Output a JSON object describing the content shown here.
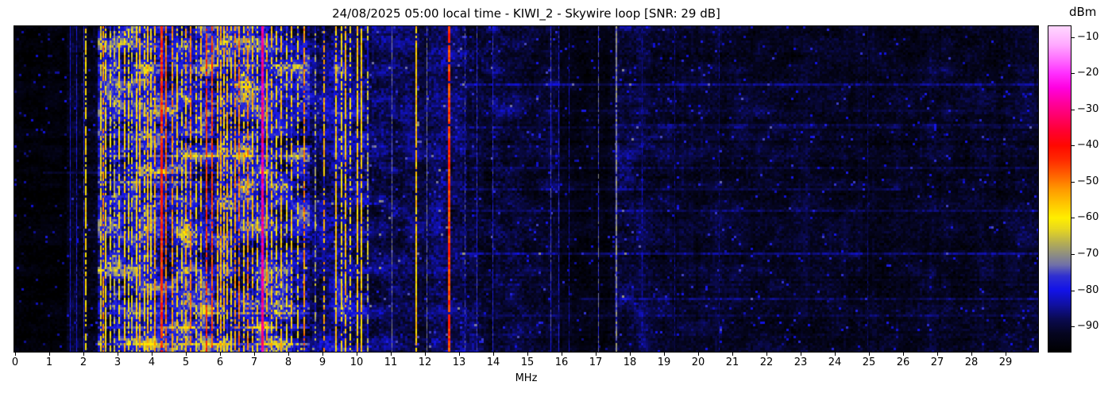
{
  "title": "24/08/2025 05:00 local time - KIWI_2 - Skywire loop [SNR: 29 dB]",
  "x_axis": {
    "label": "MHz",
    "tick_labels": [
      "0",
      "1",
      "2",
      "3",
      "4",
      "5",
      "6",
      "7",
      "8",
      "9",
      "10",
      "11",
      "12",
      "13",
      "14",
      "15",
      "16",
      "17",
      "18",
      "19",
      "20",
      "21",
      "22",
      "23",
      "24",
      "25",
      "26",
      "27",
      "28",
      "29"
    ]
  },
  "colorbar": {
    "label": "dBm",
    "ticks": [
      {
        "v": -10,
        "label": "−10"
      },
      {
        "v": -20,
        "label": "−20"
      },
      {
        "v": -30,
        "label": "−30"
      },
      {
        "v": -40,
        "label": "−40"
      },
      {
        "v": -50,
        "label": "−50"
      },
      {
        "v": -60,
        "label": "−60"
      },
      {
        "v": -70,
        "label": "−70"
      },
      {
        "v": -80,
        "label": "−80"
      },
      {
        "v": -90,
        "label": "−90"
      }
    ]
  },
  "chart_data": {
    "type": "heatmap",
    "subtype": "radio-spectrogram-waterfall",
    "title": "24/08/2025 05:00 local time - KIWI_2 - Skywire loop [SNR: 29 dB]",
    "xlabel": "MHz",
    "x_range": [
      0,
      29.95
    ],
    "x_ticks": [
      0,
      1,
      2,
      3,
      4,
      5,
      6,
      7,
      8,
      9,
      10,
      11,
      12,
      13,
      14,
      15,
      16,
      17,
      18,
      19,
      20,
      21,
      22,
      23,
      24,
      25,
      26,
      27,
      28,
      29
    ],
    "y_axis": "time (vertical, no tick labels shown)",
    "value_unit": "dBm",
    "value_range": [
      -97,
      -7
    ],
    "colorbar_ticks": [
      -10,
      -20,
      -30,
      -40,
      -50,
      -60,
      -70,
      -80,
      -90
    ],
    "grid": false,
    "legend": "colorbar right",
    "colormap_stops": [
      [
        0.0,
        "#000000"
      ],
      [
        0.056,
        "#050520"
      ],
      [
        0.1,
        "#0a0a50"
      ],
      [
        0.144,
        "#1010a0"
      ],
      [
        0.189,
        "#1212e8"
      ],
      [
        0.233,
        "#3030d0"
      ],
      [
        0.267,
        "#7070a8"
      ],
      [
        0.3,
        "#8f8f80"
      ],
      [
        0.333,
        "#b3ac55"
      ],
      [
        0.378,
        "#e8d81e"
      ],
      [
        0.411,
        "#ffee00"
      ],
      [
        0.456,
        "#ffc400"
      ],
      [
        0.5,
        "#ff9800"
      ],
      [
        0.544,
        "#ff6000"
      ],
      [
        0.589,
        "#ff2a00"
      ],
      [
        0.633,
        "#ff0800"
      ],
      [
        0.678,
        "#ff0030"
      ],
      [
        0.722,
        "#ff0068"
      ],
      [
        0.767,
        "#ff00a0"
      ],
      [
        0.811,
        "#ff00e0"
      ],
      [
        0.856,
        "#ff30ff"
      ],
      [
        0.9,
        "#ff70ff"
      ],
      [
        0.944,
        "#ffaaff"
      ],
      [
        1.0,
        "#ffd8ff"
      ]
    ],
    "noise_seed": 73,
    "bands_format": "[f_from_MHz, f_to_MHz, base_dBm, jitter_dB, blotch_dB]",
    "bands": [
      [
        0.0,
        1.5,
        -95.5,
        1.6,
        1.5
      ],
      [
        1.5,
        2.42,
        -92.5,
        2.6,
        2.0
      ],
      [
        2.42,
        8.62,
        -81.0,
        5.5,
        12.0
      ],
      [
        8.62,
        9.3,
        -86.5,
        4.0,
        6.0
      ],
      [
        9.3,
        10.35,
        -85.0,
        4.5,
        8.0
      ],
      [
        10.35,
        11.5,
        -88.0,
        3.2,
        4.0
      ],
      [
        11.5,
        13.2,
        -88.5,
        3.2,
        4.0
      ],
      [
        13.2,
        14.8,
        -89.5,
        3.0,
        3.5
      ],
      [
        14.8,
        15.95,
        -90.5,
        2.8,
        3.0
      ],
      [
        15.95,
        17.55,
        -93.8,
        2.0,
        2.0
      ],
      [
        17.55,
        18.4,
        -89.5,
        3.0,
        3.5
      ],
      [
        18.4,
        19.3,
        -90.5,
        2.8,
        3.0
      ],
      [
        19.3,
        21.5,
        -91.5,
        2.5,
        2.5
      ],
      [
        21.5,
        29.95,
        -92.0,
        2.5,
        2.5
      ]
    ],
    "carriers_format": "[freq_MHz, peak_dBm, duty_0to1, width_px]",
    "carriers": [
      [
        1.6,
        -81,
        1.0,
        1
      ],
      [
        1.78,
        -80,
        0.9,
        1
      ],
      [
        2.0,
        -78,
        0.95,
        1
      ],
      [
        2.07,
        -59,
        0.7,
        2
      ],
      [
        2.5,
        -62,
        0.85,
        2
      ],
      [
        2.58,
        -52,
        0.6,
        2
      ],
      [
        2.66,
        -60,
        0.8,
        2
      ],
      [
        2.78,
        -63,
        0.7,
        2
      ],
      [
        2.9,
        -66,
        0.6,
        2
      ],
      [
        3.05,
        -60,
        0.75,
        2
      ],
      [
        3.2,
        -57,
        0.8,
        2
      ],
      [
        3.33,
        -61,
        0.7,
        2
      ],
      [
        3.42,
        -64,
        0.6,
        2
      ],
      [
        3.55,
        -58,
        0.8,
        2
      ],
      [
        3.65,
        -56,
        0.85,
        2
      ],
      [
        3.78,
        -60,
        0.7,
        2
      ],
      [
        3.88,
        -55,
        0.85,
        2
      ],
      [
        3.98,
        -59,
        0.75,
        2
      ],
      [
        4.1,
        -54,
        0.85,
        2
      ],
      [
        4.28,
        -44,
        0.97,
        3
      ],
      [
        4.43,
        -49,
        0.9,
        2
      ],
      [
        4.6,
        -52,
        0.85,
        2
      ],
      [
        4.75,
        -58,
        0.7,
        2
      ],
      [
        4.88,
        -61,
        0.6,
        2
      ],
      [
        5.0,
        -55,
        0.8,
        2
      ],
      [
        5.15,
        -51,
        0.85,
        2
      ],
      [
        5.3,
        -59,
        0.7,
        2
      ],
      [
        5.45,
        -57,
        0.75,
        2
      ],
      [
        5.6,
        -45,
        0.9,
        2
      ],
      [
        5.77,
        -46,
        0.9,
        2
      ],
      [
        5.92,
        -56,
        0.8,
        2
      ],
      [
        6.02,
        -55,
        0.85,
        2
      ],
      [
        6.12,
        -57,
        0.8,
        2
      ],
      [
        6.22,
        -56,
        0.8,
        2
      ],
      [
        6.32,
        -59,
        0.7,
        2
      ],
      [
        6.45,
        -53,
        0.8,
        2
      ],
      [
        6.55,
        -50,
        0.85,
        2
      ],
      [
        6.7,
        -57,
        0.7,
        2
      ],
      [
        6.82,
        -52,
        0.8,
        2
      ],
      [
        6.95,
        -56,
        0.7,
        2
      ],
      [
        7.1,
        -59,
        0.7,
        2
      ],
      [
        7.23,
        -29,
        1.0,
        3
      ],
      [
        7.38,
        -55,
        0.8,
        2
      ],
      [
        7.52,
        -57,
        0.7,
        2
      ],
      [
        7.66,
        -59,
        0.7,
        2
      ],
      [
        7.8,
        -56,
        0.75,
        2
      ],
      [
        7.95,
        -61,
        0.6,
        2
      ],
      [
        8.1,
        -57,
        0.7,
        2
      ],
      [
        8.28,
        -60,
        0.6,
        2
      ],
      [
        8.47,
        -51,
        0.7,
        2
      ],
      [
        8.78,
        -68,
        0.5,
        2
      ],
      [
        9.05,
        -54,
        0.55,
        2
      ],
      [
        9.4,
        -57,
        0.9,
        2
      ],
      [
        9.55,
        -60,
        0.75,
        2
      ],
      [
        9.68,
        -56,
        0.85,
        2
      ],
      [
        9.82,
        -62,
        0.6,
        2
      ],
      [
        10.02,
        -57,
        0.85,
        2
      ],
      [
        10.15,
        -57,
        0.9,
        2
      ],
      [
        10.32,
        -66,
        0.5,
        2
      ],
      [
        11.02,
        -73,
        0.95,
        1
      ],
      [
        11.74,
        -57,
        0.95,
        2
      ],
      [
        12.05,
        -73,
        0.9,
        1
      ],
      [
        12.7,
        -45,
        0.97,
        3
      ],
      [
        13.16,
        -76,
        0.6,
        1
      ],
      [
        13.5,
        -78,
        0.9,
        1
      ],
      [
        13.98,
        -78,
        0.85,
        1
      ],
      [
        15.68,
        -77,
        0.9,
        1
      ],
      [
        15.9,
        -79,
        0.8,
        1
      ],
      [
        16.2,
        -84,
        0.8,
        1
      ],
      [
        17.07,
        -75,
        0.9,
        1
      ],
      [
        17.6,
        -72,
        0.97,
        2
      ],
      [
        18.35,
        -84,
        0.7,
        1
      ],
      [
        19.3,
        -85,
        0.6,
        1
      ],
      [
        20.6,
        -86,
        0.6,
        1
      ],
      [
        24.95,
        -87,
        0.5,
        1
      ]
    ],
    "h_streaks_format": "[row_fraction_0to1, f_from_MHz, f_to_MHz, boost_dB]",
    "h_streaks": [
      [
        0.115,
        2.42,
        8.62,
        6
      ],
      [
        0.18,
        13.0,
        30.0,
        4
      ],
      [
        0.3,
        17.5,
        30.0,
        4
      ],
      [
        0.4,
        2.42,
        8.62,
        7
      ],
      [
        0.445,
        0.8,
        8.62,
        5
      ],
      [
        0.475,
        2.42,
        5.5,
        7
      ],
      [
        0.5,
        13.0,
        26.0,
        3.5
      ],
      [
        0.52,
        2.42,
        4.7,
        8
      ],
      [
        0.565,
        13.0,
        30.0,
        4
      ],
      [
        0.695,
        13.0,
        30.0,
        6
      ],
      [
        0.84,
        16.5,
        30.0,
        5
      ],
      [
        0.88,
        2.42,
        8.62,
        7
      ],
      [
        0.925,
        2.42,
        8.62,
        8
      ],
      [
        0.975,
        2.42,
        8.62,
        9
      ]
    ]
  }
}
